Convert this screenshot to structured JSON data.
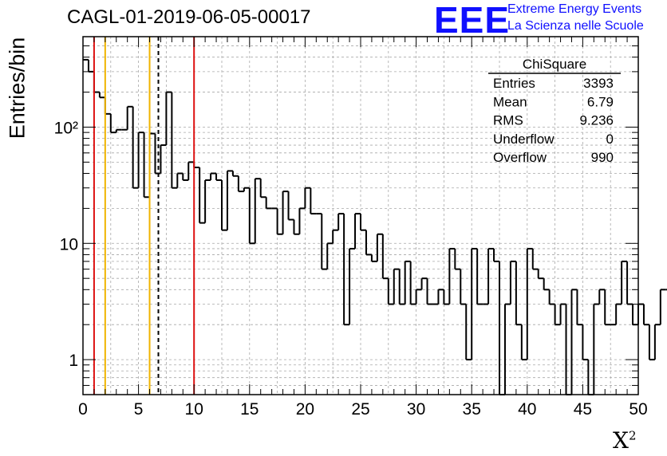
{
  "title": "CAGL-01-2019-06-05-00017",
  "logo": {
    "mark": "EEE",
    "line1": "Extreme Energy Events",
    "line2": "La Scienza nelle Scuole",
    "color": "#1010ff"
  },
  "chart_data": {
    "type": "histogram",
    "xlabel": "X",
    "xlabel_superscript": "2",
    "ylabel": "Entries/bin",
    "xlim": [
      0,
      50
    ],
    "ylim": [
      0.5,
      600
    ],
    "yscale": "log",
    "grid": true,
    "bin_width": 0.5,
    "x_ticks": [
      "0",
      "5",
      "10",
      "15",
      "20",
      "25",
      "30",
      "35",
      "40",
      "45",
      "50"
    ],
    "y_ticks": [
      "1",
      "10",
      "10²"
    ],
    "values": [
      380,
      300,
      200,
      180,
      130,
      90,
      95,
      95,
      150,
      30,
      90,
      25,
      88,
      40,
      70,
      200,
      30,
      40,
      35,
      50,
      45,
      15,
      35,
      40,
      35,
      13,
      42,
      38,
      28,
      30,
      10,
      36,
      25,
      20,
      20,
      12,
      28,
      16,
      12,
      20,
      30,
      18,
      18,
      6,
      10,
      13,
      18,
      2,
      9,
      18,
      13,
      8,
      7,
      12,
      5,
      3,
      6,
      3,
      7,
      3,
      4,
      5,
      3,
      3,
      4,
      3,
      9,
      6,
      3,
      1,
      9,
      3,
      3,
      9,
      7,
      0.45,
      3,
      7,
      2,
      1,
      9,
      6,
      5,
      4,
      3,
      2,
      3,
      0.45,
      4,
      2,
      1,
      0.45,
      3,
      4,
      2,
      2,
      3,
      7,
      3,
      2,
      3,
      2,
      1,
      2,
      4,
      4,
      4,
      2,
      3,
      4,
      2,
      2,
      5,
      4,
      2,
      6,
      2,
      2,
      0.45,
      1,
      5,
      5,
      5,
      2,
      1,
      1,
      1,
      2,
      1,
      2,
      2,
      1,
      2,
      2,
      2,
      1,
      0.45,
      1,
      1,
      2,
      2,
      3,
      1,
      2
    ],
    "vertical_lines": [
      {
        "x": 1,
        "color": "#dd1111",
        "style": "solid"
      },
      {
        "x": 2,
        "color": "#f0b400",
        "style": "solid"
      },
      {
        "x": 6,
        "color": "#f0b400",
        "style": "solid"
      },
      {
        "x": 6.79,
        "color": "#000000",
        "style": "dashed"
      },
      {
        "x": 10,
        "color": "#dd1111",
        "style": "solid"
      }
    ],
    "stats": {
      "name": "ChiSquare",
      "rows": [
        {
          "label": "Entries",
          "value": "3393"
        },
        {
          "label": "Mean",
          "value": "6.79"
        },
        {
          "label": "RMS",
          "value": "9.236"
        },
        {
          "label": "Underflow",
          "value": "0"
        },
        {
          "label": "Overflow",
          "value": "990"
        }
      ]
    }
  }
}
